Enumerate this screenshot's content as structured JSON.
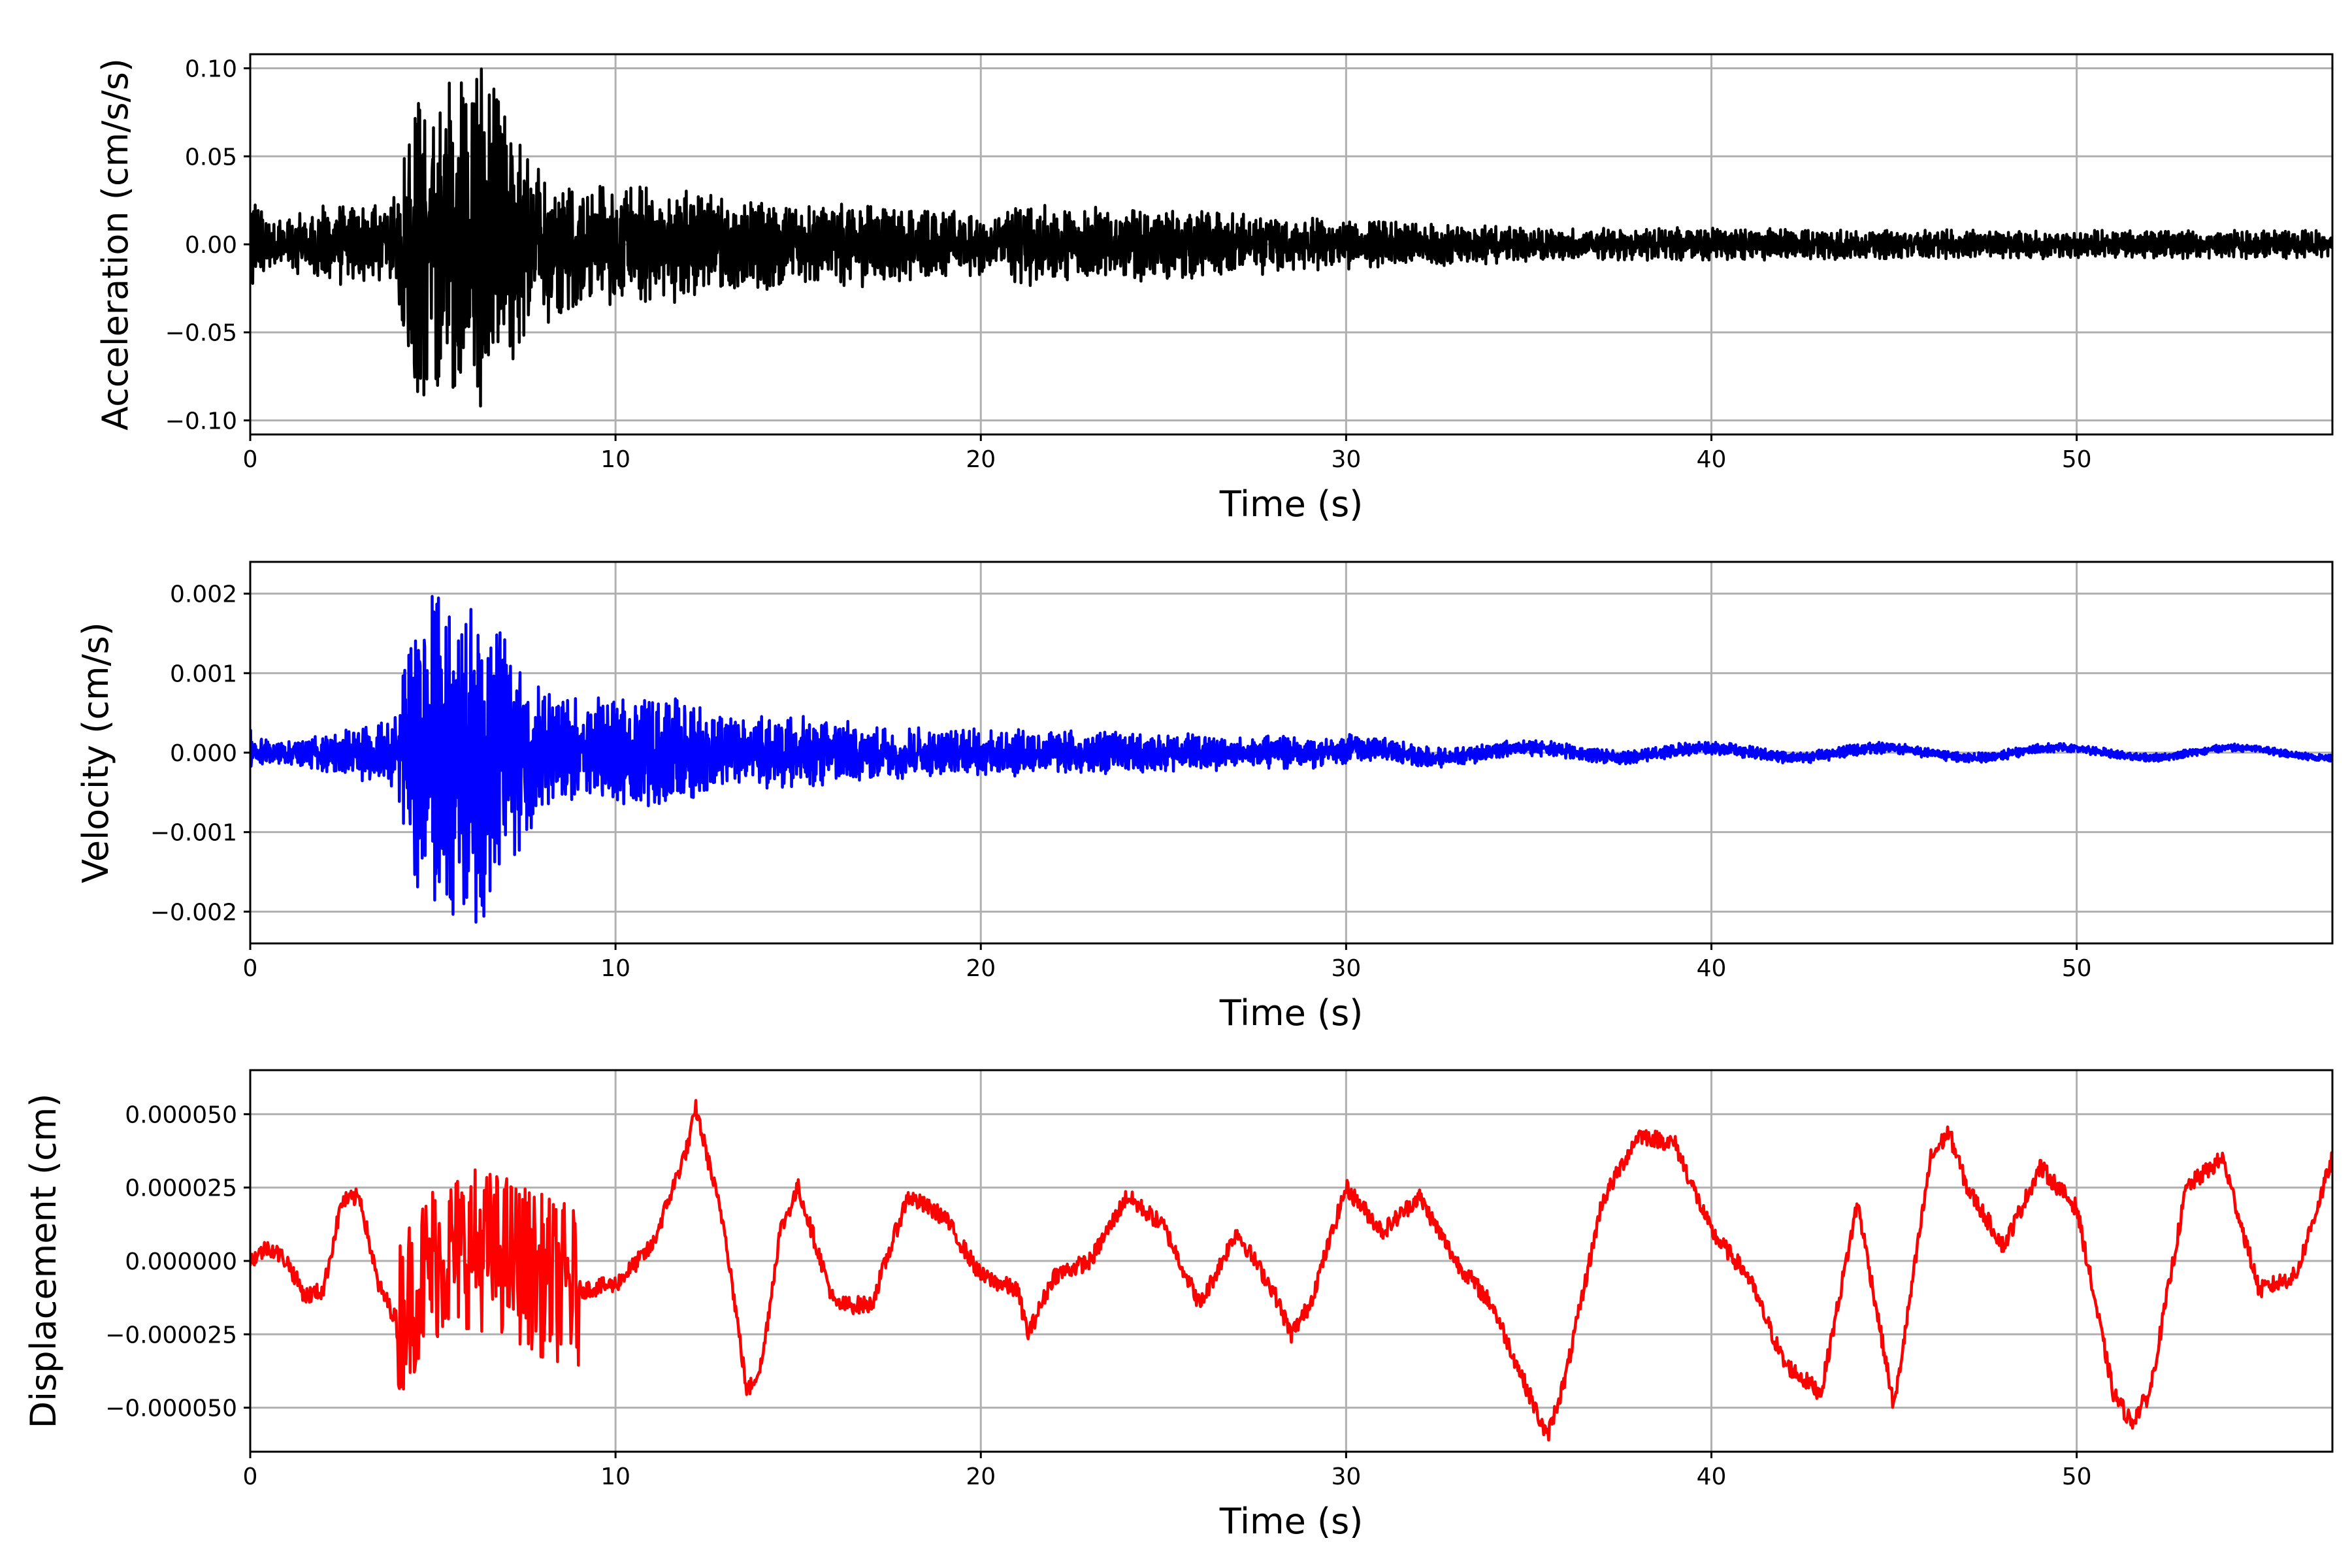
{
  "chart_data": [
    {
      "type": "line",
      "xlabel": "Time (s)",
      "ylabel": "Acceleration (cm/s/s)",
      "xlim": [
        0,
        57
      ],
      "ylim": [
        -0.108,
        0.108
      ],
      "xticks": [
        0,
        10,
        20,
        30,
        40,
        50
      ],
      "xtick_labels": [
        "0",
        "10",
        "20",
        "30",
        "40",
        "50"
      ],
      "yticks": [
        -0.1,
        -0.05,
        0.0,
        0.05,
        0.1
      ],
      "ytick_labels": [
        "−0.10",
        "−0.05",
        "0.00",
        "0.05",
        "0.10"
      ],
      "grid": true,
      "color": "#000000",
      "series": [
        {
          "x": [
            0,
            0.5,
            1,
            1.5,
            2,
            2.5,
            3,
            3.5,
            4,
            4.2,
            4.5,
            5,
            5.5,
            6,
            6.2,
            6.5,
            7,
            7.5,
            8,
            8.5,
            9,
            10,
            11,
            12,
            13,
            14,
            15,
            17,
            20,
            21,
            22,
            24,
            26,
            28,
            30,
            33,
            36,
            40,
            45,
            50,
            55,
            57
          ],
          "y": [
            0.03,
            0.012,
            0.015,
            0.015,
            0.02,
            0.02,
            0.02,
            0.02,
            0.025,
            0.06,
            0.075,
            0.08,
            0.085,
            0.08,
            0.094,
            0.08,
            0.065,
            0.05,
            0.04,
            0.035,
            0.03,
            0.03,
            0.028,
            0.028,
            0.022,
            0.022,
            0.022,
            0.02,
            0.015,
            0.022,
            0.018,
            0.018,
            0.016,
            0.014,
            0.012,
            0.01,
            0.008,
            0.008,
            0.007,
            0.007,
            0.007,
            0.007
          ]
        }
      ]
    },
    {
      "type": "line",
      "xlabel": "Time (s)",
      "ylabel": "Velocity (cm/s)",
      "xlim": [
        0,
        57
      ],
      "ylim": [
        -0.0024,
        0.0024
      ],
      "xticks": [
        0,
        10,
        20,
        30,
        40,
        50
      ],
      "xtick_labels": [
        "0",
        "10",
        "20",
        "30",
        "40",
        "50"
      ],
      "yticks": [
        -0.002,
        -0.001,
        0.0,
        0.001,
        0.002
      ],
      "ytick_labels": [
        "−0.002",
        "−0.001",
        "0.000",
        "0.001",
        "0.002"
      ],
      "grid": true,
      "color": "#0000ff",
      "series": [
        {
          "x": [
            0,
            0.5,
            1,
            1.5,
            2,
            2.5,
            3,
            3.5,
            4,
            4.2,
            4.5,
            5,
            5.5,
            6,
            6.2,
            6.5,
            7,
            7.5,
            8,
            8.5,
            9,
            10,
            11,
            12,
            13,
            14,
            15,
            17,
            20,
            22,
            24,
            26,
            28,
            30,
            33,
            36,
            40,
            45,
            50,
            55,
            57
          ],
          "y": [
            0.00025,
            0.00012,
            0.00012,
            0.00015,
            0.0002,
            0.00025,
            0.0003,
            0.0003,
            0.0004,
            0.0012,
            0.0016,
            0.0017,
            0.0017,
            0.0018,
            0.0021,
            0.0017,
            0.0012,
            0.001,
            0.0007,
            0.0006,
            0.0006,
            0.0006,
            0.0006,
            0.0006,
            0.00035,
            0.0004,
            0.0004,
            0.0003,
            0.00025,
            0.00025,
            0.00022,
            0.0002,
            0.00018,
            0.00015,
            0.0001,
            8e-05,
            7e-05,
            6e-05,
            5e-05,
            4e-05,
            4e-05
          ]
        }
      ]
    },
    {
      "type": "line",
      "xlabel": "Time (s)",
      "ylabel": "Displacement (cm)",
      "xlim": [
        0,
        57
      ],
      "ylim": [
        -6.5e-05,
        6.5e-05
      ],
      "xticks": [
        0,
        10,
        20,
        30,
        40,
        50
      ],
      "xtick_labels": [
        "0",
        "10",
        "20",
        "30",
        "40",
        "50"
      ],
      "yticks": [
        -5e-05,
        -2.5e-05,
        0.0,
        2.5e-05,
        5e-05
      ],
      "ytick_labels": [
        "−0.000050",
        "−0.000025",
        "0.000000",
        "0.000025",
        "0.000050"
      ],
      "grid": true,
      "color": "#ff0000",
      "series": [
        {
          "x": [
            0,
            0.5,
            1,
            1.5,
            2,
            2.5,
            3,
            3.5,
            4,
            5,
            6,
            7,
            8,
            9,
            10,
            11,
            12,
            12.2,
            13,
            13.6,
            14,
            14.5,
            15,
            16,
            17,
            18,
            19,
            20,
            21,
            21.3,
            22,
            23,
            24,
            25,
            26,
            27,
            28,
            28.5,
            29,
            30,
            31,
            32,
            33,
            34,
            35,
            35.5,
            36,
            37,
            38,
            39,
            40,
            41,
            42,
            43,
            44,
            45,
            46,
            46.5,
            47,
            48,
            49,
            50,
            51,
            51.5,
            52,
            53,
            54,
            55,
            56,
            57
          ],
          "y": [
            0.0,
            5e-06,
            0.0,
            -1.2e-05,
            -1e-05,
            2e-05,
            2.2e-05,
            -8e-06,
            -2e-05,
            0.0,
            5e-06,
            2e-06,
            -5e-06,
            -1e-05,
            -8e-06,
            5e-06,
            4e-05,
            5.2e-05,
            1e-05,
            -4.5e-05,
            -3.5e-05,
            1e-05,
            2.5e-05,
            -1.5e-05,
            -1.5e-05,
            2.2e-05,
            1.5e-05,
            -5e-06,
            -1e-05,
            -2.5e-05,
            -5e-06,
            0.0,
            2.2e-05,
            1.2e-05,
            -1.5e-05,
            1e-05,
            -1e-05,
            -2.5e-05,
            -1.5e-05,
            2.5e-05,
            1e-05,
            2.2e-05,
            0.0,
            -1.5e-05,
            -4.5e-05,
            -6e-05,
            -4e-05,
            2e-05,
            4.3e-05,
            4e-05,
            1e-05,
            -5e-06,
            -3.5e-05,
            -4.5e-05,
            2e-05,
            -5e-05,
            3.5e-05,
            4.4e-05,
            2.5e-05,
            5e-06,
            3.2e-05,
            1.8e-05,
            -4.5e-05,
            -5.5e-05,
            -4.5e-05,
            2.5e-05,
            3.5e-05,
            -1e-05,
            -5e-06,
            3.5e-05
          ]
        }
      ]
    }
  ]
}
